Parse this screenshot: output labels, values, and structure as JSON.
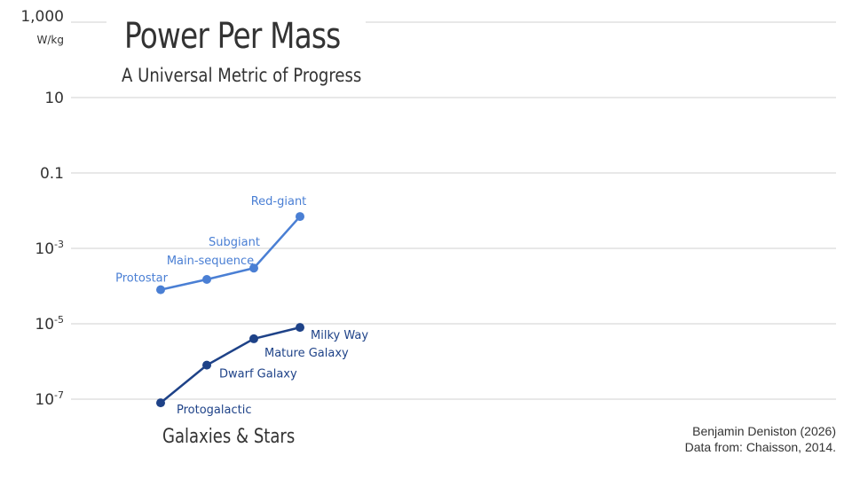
{
  "chart_data": {
    "type": "line",
    "title": "Power Per Mass",
    "subtitle": "A Universal Metric of Progress",
    "group_label": "Galaxies & Stars",
    "yscale": "log",
    "ylim": [
      1e-07,
      1000
    ],
    "y_unit": "W/kg",
    "y_ticks": [
      {
        "value": 1000,
        "label": "1,000"
      },
      {
        "value": 10,
        "label": "10"
      },
      {
        "value": 0.1,
        "label": "0.1"
      },
      {
        "value": 0.001,
        "base": "10",
        "exp": "-3"
      },
      {
        "value": 1e-05,
        "base": "10",
        "exp": "-5"
      },
      {
        "value": 1e-07,
        "base": "10",
        "exp": "-7"
      }
    ],
    "grid": true,
    "series": [
      {
        "color": "#4a7fd4",
        "points": [
          {
            "label": "Protostar",
            "y": 8e-05
          },
          {
            "label": "Main-sequence",
            "y": 0.00015
          },
          {
            "label": "Subgiant",
            "y": 0.0003
          },
          {
            "label": "Red-giant",
            "y": 0.007
          }
        ]
      },
      {
        "color": "#1e4288",
        "points": [
          {
            "label": "Protogalactic",
            "y": 8e-08
          },
          {
            "label": "Dwarf Galaxy",
            "y": 8e-07
          },
          {
            "label": "Mature Galaxy",
            "y": 4e-06
          },
          {
            "label": "Milky Way",
            "y": 8e-06
          }
        ]
      }
    ]
  },
  "credit": {
    "line1": "Benjamin Deniston (2026)",
    "line2": "Data from: Chaisson, 2014."
  }
}
